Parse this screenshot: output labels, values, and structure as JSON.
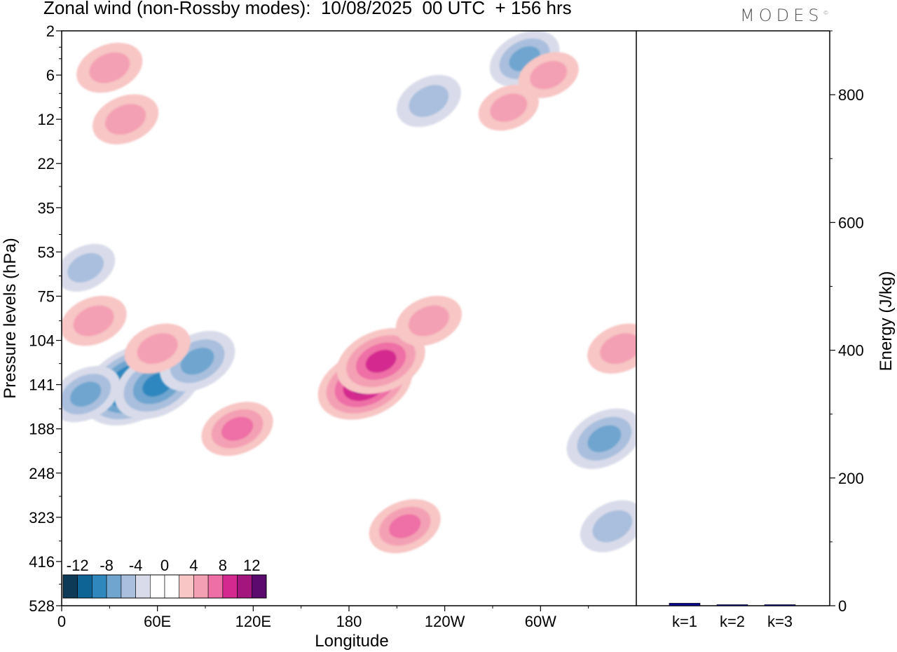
{
  "title": "Zonal wind (non-Rossby modes):  10/08/2025  00 UTC  + 156 hrs",
  "brand": "MODES",
  "brand_mark": "©",
  "chart_data": [
    {
      "type": "heatmap",
      "xlabel": "Longitude",
      "ylabel": "Pressure levels (hPa)",
      "x_ticks": [
        "0",
        "60E",
        "120E",
        "180",
        "120W",
        "60W"
      ],
      "y_ticks": [
        "2",
        "6",
        "12",
        "22",
        "35",
        "53",
        "75",
        "104",
        "141",
        "188",
        "248",
        "323",
        "416",
        "528"
      ],
      "colorbar": {
        "labels": [
          "-12",
          "-8",
          "-4",
          "0",
          "4",
          "8",
          "12"
        ],
        "colors": [
          "#0d3b57",
          "#0f6496",
          "#2f87be",
          "#6fa5cf",
          "#a9bfdd",
          "#d9dbea",
          "#ffffff",
          "#ffffff",
          "#f7c6c5",
          "#f4a0b4",
          "#ee6fa6",
          "#d42a8f",
          "#a4167e",
          "#5c0a6e"
        ]
      },
      "features": [
        {
          "lon": 45,
          "level": 141,
          "value": -12
        },
        {
          "lon": 60,
          "level": 141,
          "value": -9
        },
        {
          "lon": 85,
          "level": 120,
          "value": -7
        },
        {
          "lon": 15,
          "level": 150,
          "value": -6
        },
        {
          "lon": 15,
          "level": 60,
          "value": -4
        },
        {
          "lon": 190,
          "level": 141,
          "value": 10
        },
        {
          "lon": 200,
          "level": 120,
          "value": 9
        },
        {
          "lon": 110,
          "level": 188,
          "value": 6
        },
        {
          "lon": 215,
          "level": 340,
          "value": 6
        },
        {
          "lon": 230,
          "level": 90,
          "value": 5
        },
        {
          "lon": 340,
          "level": 200,
          "value": -7
        },
        {
          "lon": 345,
          "level": 340,
          "value": -5
        },
        {
          "lon": 230,
          "level": 9,
          "value": -5
        },
        {
          "lon": 290,
          "level": 4,
          "value": -6
        },
        {
          "lon": 20,
          "level": 90,
          "value": 5
        },
        {
          "lon": 350,
          "level": 110,
          "value": 5
        },
        {
          "lon": 60,
          "level": 110,
          "value": 5
        },
        {
          "lon": 30,
          "level": 5,
          "value": 5
        },
        {
          "lon": 40,
          "level": 12,
          "value": 5
        },
        {
          "lon": 280,
          "level": 10,
          "value": 4
        },
        {
          "lon": 305,
          "level": 6,
          "value": 4
        }
      ]
    },
    {
      "type": "bar",
      "categories": [
        "k=1",
        "k=2",
        "k=3"
      ],
      "values": [
        4,
        1.5,
        1
      ],
      "ylabel": "Energy (J/kg)",
      "ylim": [
        0,
        900
      ],
      "y_ticks": [
        0,
        200,
        400,
        600,
        800
      ],
      "bar_color": "#0a0a8c"
    }
  ]
}
